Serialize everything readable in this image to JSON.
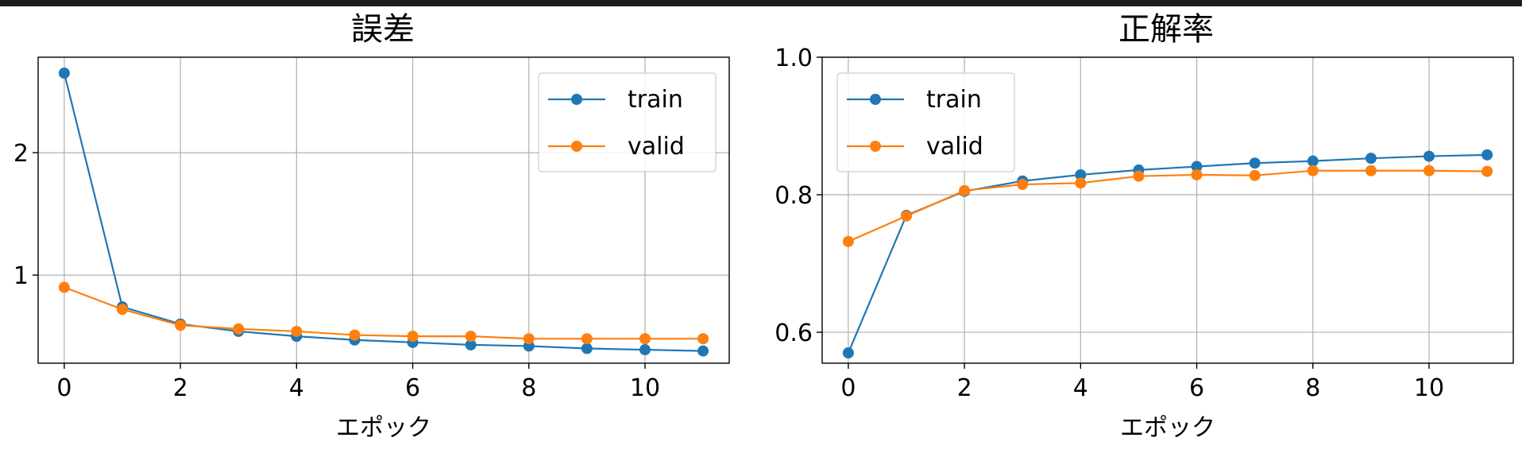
{
  "chart_data": [
    {
      "type": "line",
      "title": "誤差",
      "xlabel": "エポック",
      "ylabel": "",
      "x": [
        0,
        1,
        2,
        3,
        4,
        5,
        6,
        7,
        8,
        9,
        10,
        11
      ],
      "xlim": [
        -0.45,
        11.45
      ],
      "ylim": [
        0.28,
        2.78
      ],
      "xticks": [
        0,
        2,
        4,
        6,
        8,
        10
      ],
      "yticks": [
        1,
        2
      ],
      "grid": true,
      "legend_position": "top-right",
      "series": [
        {
          "name": "train",
          "color": "#1f77b4",
          "values": [
            2.65,
            0.74,
            0.6,
            0.54,
            0.5,
            0.47,
            0.45,
            0.43,
            0.42,
            0.4,
            0.39,
            0.38
          ]
        },
        {
          "name": "valid",
          "color": "#ff7f0e",
          "values": [
            0.9,
            0.72,
            0.59,
            0.56,
            0.54,
            0.51,
            0.5,
            0.5,
            0.48,
            0.48,
            0.48,
            0.48
          ]
        }
      ]
    },
    {
      "type": "line",
      "title": "正解率",
      "xlabel": "エポック",
      "ylabel": "",
      "x": [
        0,
        1,
        2,
        3,
        4,
        5,
        6,
        7,
        8,
        9,
        10,
        11
      ],
      "xlim": [
        -0.45,
        11.45
      ],
      "ylim": [
        0.555,
        1.0
      ],
      "xticks": [
        0,
        2,
        4,
        6,
        8,
        10
      ],
      "yticks": [
        0.6,
        0.8,
        1.0
      ],
      "ytick_labels": [
        "0.6",
        "0.8",
        "1.0"
      ],
      "grid": true,
      "legend_position": "top-left",
      "series": [
        {
          "name": "train",
          "color": "#1f77b4",
          "values": [
            0.57,
            0.77,
            0.805,
            0.82,
            0.829,
            0.836,
            0.841,
            0.846,
            0.849,
            0.853,
            0.856,
            0.858
          ]
        },
        {
          "name": "valid",
          "color": "#ff7f0e",
          "values": [
            0.732,
            0.769,
            0.806,
            0.815,
            0.817,
            0.827,
            0.829,
            0.828,
            0.835,
            0.835,
            0.835,
            0.834
          ]
        }
      ]
    }
  ]
}
